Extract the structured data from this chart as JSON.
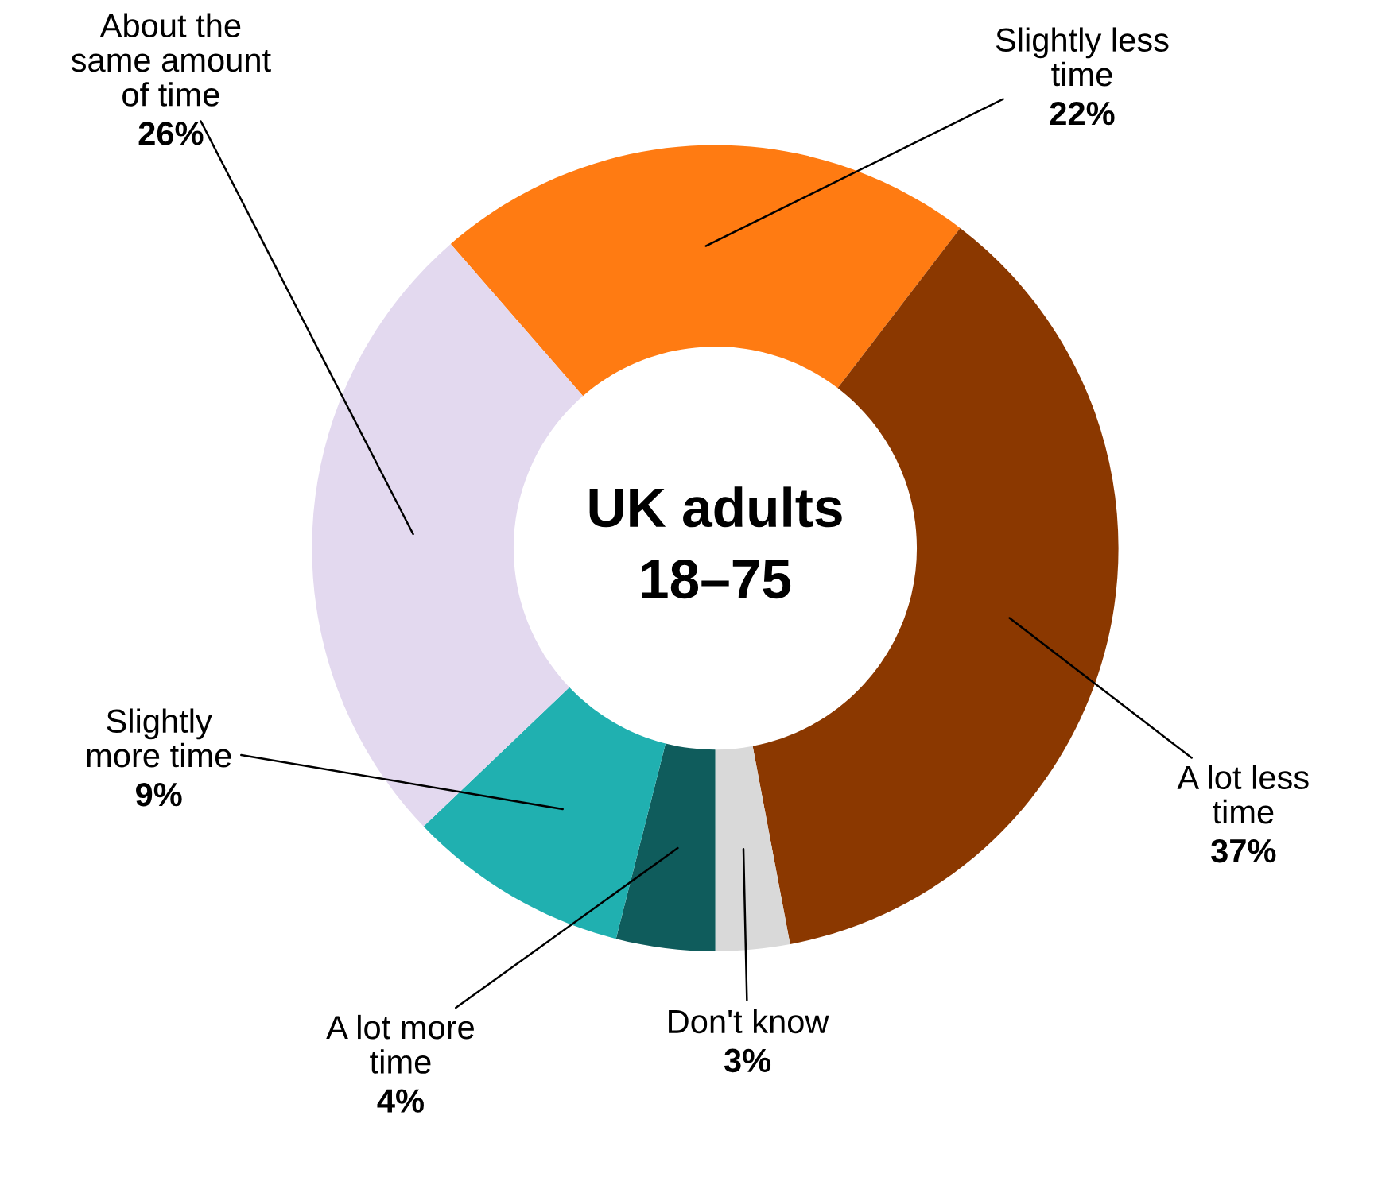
{
  "chart_data": {
    "type": "donut",
    "title": "UK adults\n18–75",
    "categories": [
      "Slightly less\ntime",
      "A lot less\ntime",
      "Don't know",
      "A lot more\ntime",
      "Slightly\nmore time",
      "About the\nsame amount\nof time"
    ],
    "values": [
      22,
      37,
      3,
      4,
      9,
      26
    ],
    "value_labels": [
      "22%",
      "37%",
      "3%",
      "4%",
      "9%",
      "26%"
    ],
    "colors": [
      "#ff7b12",
      "#8b3800",
      "#d9d9d9",
      "#0f5c5c",
      "#20b0b0",
      "#e3d9ef"
    ],
    "legend": false
  }
}
